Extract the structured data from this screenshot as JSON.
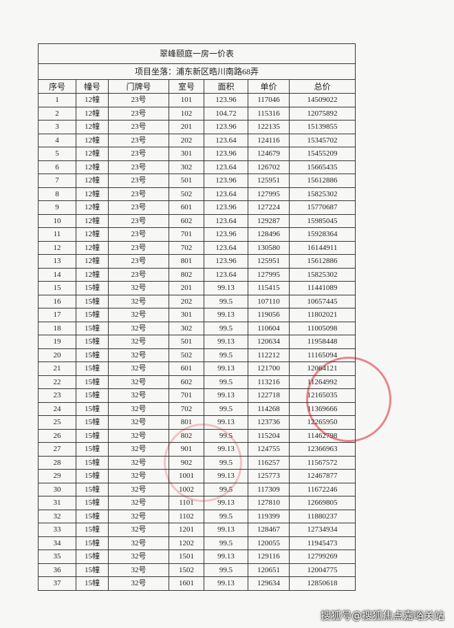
{
  "table": {
    "title": "翠峰颐庭一房一价表",
    "location": "项目坐落：浦东新区晧川南路68弄",
    "header": [
      "序号",
      "幢号",
      "门牌号",
      "室号",
      "面积",
      "单价",
      "总价"
    ],
    "rows": [
      [
        "1",
        "12幢",
        "23号",
        "101",
        "123.96",
        "117046",
        "14509022"
      ],
      [
        "2",
        "12幢",
        "23号",
        "102",
        "104.72",
        "115316",
        "12075892"
      ],
      [
        "3",
        "12幢",
        "23号",
        "201",
        "123.96",
        "122135",
        "15139855"
      ],
      [
        "4",
        "12幢",
        "23号",
        "202",
        "123.64",
        "124116",
        "15345702"
      ],
      [
        "5",
        "12幢",
        "23号",
        "301",
        "123.96",
        "124679",
        "15455209"
      ],
      [
        "6",
        "12幢",
        "23号",
        "302",
        "123.64",
        "126702",
        "15665435"
      ],
      [
        "7",
        "12幢",
        "23号",
        "501",
        "123.96",
        "125951",
        "15612886"
      ],
      [
        "8",
        "12幢",
        "23号",
        "502",
        "123.64",
        "127995",
        "15825302"
      ],
      [
        "9",
        "12幢",
        "23号",
        "601",
        "123.96",
        "127224",
        "15770687"
      ],
      [
        "10",
        "12幢",
        "23号",
        "602",
        "123.64",
        "129287",
        "15985045"
      ],
      [
        "11",
        "12幢",
        "23号",
        "701",
        "123.96",
        "128496",
        "15928364"
      ],
      [
        "12",
        "12幢",
        "23号",
        "702",
        "123.64",
        "130580",
        "16144911"
      ],
      [
        "13",
        "12幢",
        "23号",
        "801",
        "123.96",
        "125951",
        "15612886"
      ],
      [
        "14",
        "12幢",
        "23号",
        "802",
        "123.64",
        "127995",
        "15825302"
      ],
      [
        "15",
        "15幢",
        "32号",
        "201",
        "99.13",
        "115415",
        "11441089"
      ],
      [
        "16",
        "15幢",
        "32号",
        "202",
        "99.5",
        "107110",
        "10657445"
      ],
      [
        "17",
        "15幢",
        "32号",
        "301",
        "99.13",
        "119056",
        "11802021"
      ],
      [
        "18",
        "15幢",
        "32号",
        "302",
        "99.5",
        "110604",
        "11005098"
      ],
      [
        "19",
        "15幢",
        "32号",
        "501",
        "99.13",
        "120634",
        "11958448"
      ],
      [
        "20",
        "15幢",
        "32号",
        "502",
        "99.5",
        "112212",
        "11165094"
      ],
      [
        "21",
        "15幢",
        "32号",
        "601",
        "99.13",
        "121700",
        "12064121"
      ],
      [
        "22",
        "15幢",
        "32号",
        "602",
        "99.5",
        "113216",
        "11264992"
      ],
      [
        "23",
        "15幢",
        "32号",
        "701",
        "99.13",
        "122718",
        "12165035"
      ],
      [
        "24",
        "15幢",
        "32号",
        "702",
        "99.5",
        "114268",
        "11369666"
      ],
      [
        "25",
        "15幢",
        "32号",
        "801",
        "99.13",
        "123736",
        "12265950"
      ],
      [
        "26",
        "15幢",
        "32号",
        "802",
        "99.5",
        "115204",
        "11462798"
      ],
      [
        "27",
        "15幢",
        "32号",
        "901",
        "99.13",
        "124755",
        "12366963"
      ],
      [
        "28",
        "15幢",
        "32号",
        "902",
        "99.5",
        "116257",
        "11567572"
      ],
      [
        "29",
        "15幢",
        "32号",
        "1001",
        "99.13",
        "125773",
        "12467877"
      ],
      [
        "30",
        "15幢",
        "32号",
        "1002",
        "99.5",
        "117309",
        "11672246"
      ],
      [
        "31",
        "15幢",
        "32号",
        "1101",
        "99.13",
        "127810",
        "12669805"
      ],
      [
        "32",
        "15幢",
        "32号",
        "1102",
        "99.5",
        "119399",
        "11880237"
      ],
      [
        "33",
        "15幢",
        "32号",
        "1201",
        "99.13",
        "128467",
        "12734934"
      ],
      [
        "34",
        "15幢",
        "32号",
        "1202",
        "99.5",
        "120055",
        "11945473"
      ],
      [
        "35",
        "15幢",
        "32号",
        "1501",
        "99.13",
        "129116",
        "12799269"
      ],
      [
        "36",
        "15幢",
        "32号",
        "1502",
        "99.5",
        "120651",
        "12004775"
      ],
      [
        "37",
        "15幢",
        "32号",
        "1601",
        "99.13",
        "129634",
        "12850618"
      ]
    ]
  },
  "watermark": "搜狐号@搜狐焦点嘉峪关站"
}
